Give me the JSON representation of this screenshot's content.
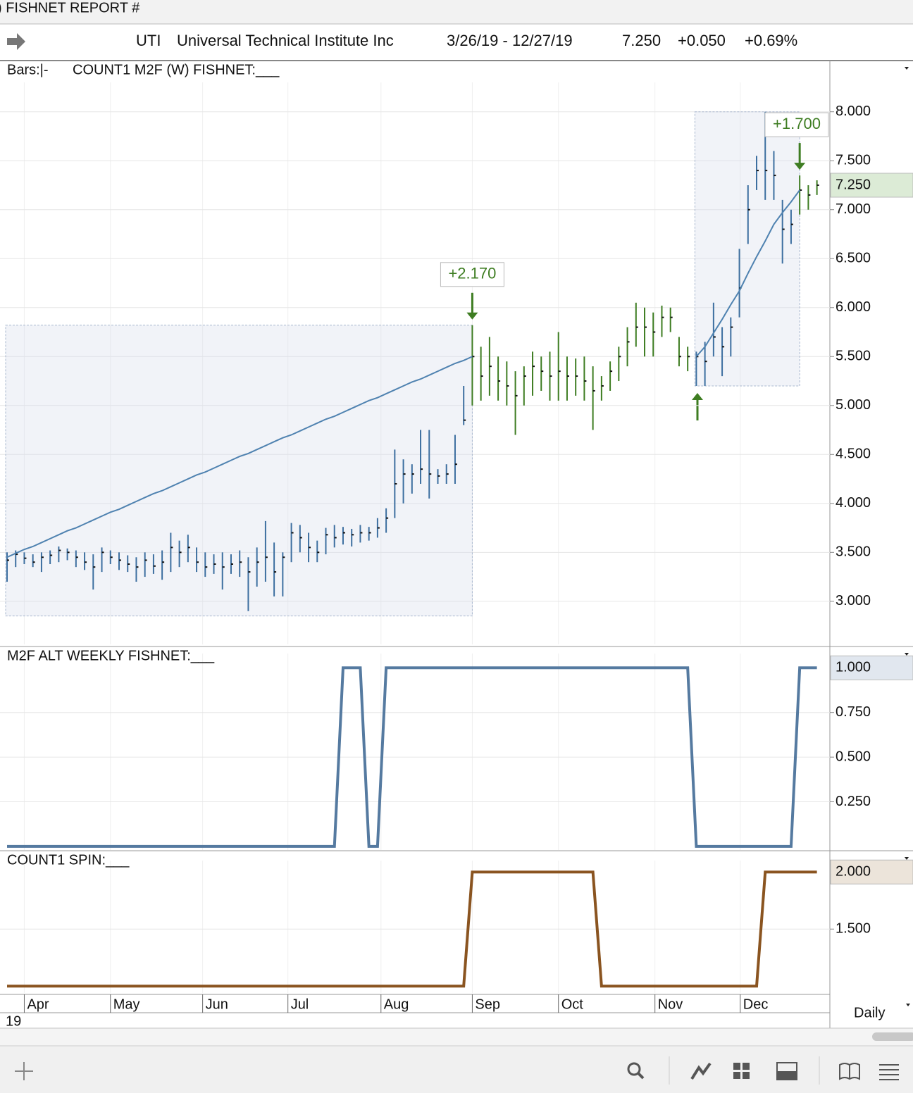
{
  "header": {
    "report": ") FISHNET  REPORT #",
    "symbol": "UTI",
    "name": "Universal Technical Institute Inc",
    "range": "3/26/19 - 12/27/19",
    "last": "7.250",
    "change": "+0.050",
    "change_pct": "+0.69%"
  },
  "footer": {
    "year": "19",
    "interval": "Daily"
  },
  "chart_data": [
    {
      "type": "hlc",
      "bars_label": "Bars:|-",
      "title": "COUNT1 M2F (W) FISHNET:___",
      "ylim": [
        2.56,
        8.3
      ],
      "yticks": [
        {
          "value": 3,
          "label": "3.000"
        },
        {
          "value": 3.5,
          "label": "3.500"
        },
        {
          "value": 4,
          "label": "4.000"
        },
        {
          "value": 4.5,
          "label": "4.500"
        },
        {
          "value": 5,
          "label": "5.000"
        },
        {
          "value": 5.5,
          "label": "5.500"
        },
        {
          "value": 6,
          "label": "6.000"
        },
        {
          "value": 6.5,
          "label": "6.500"
        },
        {
          "value": 7,
          "label": "7.000"
        },
        {
          "value": 7.5,
          "label": "7.500"
        },
        {
          "value": 8,
          "label": "8.000"
        }
      ],
      "last_label": {
        "value": 7.25,
        "label": "7.250",
        "color": "#dcebd6"
      },
      "high": [
        3.5,
        3.52,
        3.5,
        3.48,
        3.5,
        3.52,
        3.56,
        3.54,
        3.52,
        3.5,
        3.48,
        3.55,
        3.52,
        3.5,
        3.47,
        3.45,
        3.5,
        3.48,
        3.52,
        3.7,
        3.62,
        3.68,
        3.55,
        3.5,
        3.48,
        3.5,
        3.48,
        3.52,
        3.45,
        3.55,
        3.82,
        3.6,
        3.5,
        3.8,
        3.78,
        3.7,
        3.62,
        3.75,
        3.78,
        3.76,
        3.74,
        3.78,
        3.76,
        3.85,
        3.95,
        4.55,
        4.45,
        4.4,
        4.75,
        4.75,
        4.35,
        4.4,
        4.7,
        5.2,
        5.82,
        5.6,
        5.7,
        5.5,
        5.45,
        5.35,
        5.4,
        5.55,
        5.5,
        5.55,
        5.75,
        5.5,
        5.48,
        5.5,
        5.4,
        5.3,
        5.45,
        5.6,
        5.8,
        6.05,
        6.0,
        5.95,
        6.02,
        6.0,
        5.7,
        5.6,
        5.55,
        5.65,
        6.05,
        5.8,
        5.9,
        6.6,
        7.25,
        7.55,
        8.0,
        7.6,
        7.1,
        7.0,
        7.35,
        7.25,
        7.3
      ],
      "low": [
        3.2,
        3.35,
        3.38,
        3.35,
        3.3,
        3.38,
        3.4,
        3.42,
        3.35,
        3.32,
        3.12,
        3.3,
        3.38,
        3.32,
        3.3,
        3.2,
        3.25,
        3.28,
        3.22,
        3.3,
        3.35,
        3.4,
        3.3,
        3.25,
        3.28,
        3.12,
        3.28,
        3.25,
        2.9,
        3.15,
        3.2,
        3.05,
        3.05,
        3.4,
        3.5,
        3.4,
        3.4,
        3.48,
        3.55,
        3.58,
        3.56,
        3.6,
        3.62,
        3.65,
        3.7,
        3.85,
        4.0,
        4.1,
        4.2,
        4.05,
        4.2,
        4.2,
        4.2,
        4.8,
        5.0,
        5.05,
        5.1,
        5.05,
        5.0,
        4.7,
        5.0,
        5.1,
        5.15,
        5.05,
        5.05,
        5.05,
        5.1,
        5.05,
        4.75,
        5.05,
        5.15,
        5.25,
        5.4,
        5.6,
        5.5,
        5.5,
        5.7,
        5.75,
        5.4,
        5.35,
        5.2,
        5.2,
        5.5,
        5.3,
        5.5,
        5.9,
        6.65,
        7.2,
        7.1,
        7.1,
        6.45,
        6.65,
        6.95,
        7.0,
        7.15
      ],
      "close": [
        3.42,
        3.48,
        3.44,
        3.4,
        3.45,
        3.47,
        3.52,
        3.5,
        3.45,
        3.4,
        3.35,
        3.5,
        3.45,
        3.42,
        3.38,
        3.35,
        3.42,
        3.36,
        3.4,
        3.55,
        3.5,
        3.55,
        3.4,
        3.35,
        3.38,
        3.35,
        3.38,
        3.4,
        3.3,
        3.4,
        3.45,
        3.3,
        3.45,
        3.7,
        3.65,
        3.55,
        3.5,
        3.68,
        3.65,
        3.7,
        3.68,
        3.7,
        3.7,
        3.75,
        3.85,
        4.2,
        4.3,
        4.3,
        4.35,
        4.3,
        4.28,
        4.3,
        4.4,
        4.85,
        5.5,
        5.3,
        5.4,
        5.25,
        5.2,
        5.1,
        5.3,
        5.4,
        5.35,
        5.3,
        5.35,
        5.3,
        5.3,
        5.25,
        5.15,
        5.2,
        5.35,
        5.5,
        5.65,
        5.8,
        5.8,
        5.75,
        5.9,
        5.9,
        5.5,
        5.5,
        5.5,
        5.45,
        5.7,
        5.6,
        5.8,
        6.2,
        7.0,
        7.4,
        7.4,
        7.35,
        6.8,
        6.85,
        7.2,
        7.15,
        7.25
      ],
      "colors": [
        "#3d6fa0",
        "#3d6fa0",
        "#3d6fa0",
        "#3d6fa0",
        "#3d6fa0",
        "#3d6fa0",
        "#3d6fa0",
        "#3d6fa0",
        "#3d6fa0",
        "#3d6fa0",
        "#3d6fa0",
        "#3d6fa0",
        "#3d6fa0",
        "#3d6fa0",
        "#3d6fa0",
        "#3d6fa0",
        "#3d6fa0",
        "#3d6fa0",
        "#3d6fa0",
        "#3d6fa0",
        "#3d6fa0",
        "#3d6fa0",
        "#3d6fa0",
        "#3d6fa0",
        "#3d6fa0",
        "#3d6fa0",
        "#3d6fa0",
        "#3d6fa0",
        "#3d6fa0",
        "#3d6fa0",
        "#3d6fa0",
        "#3d6fa0",
        "#3d6fa0",
        "#3d6fa0",
        "#3d6fa0",
        "#3d6fa0",
        "#3d6fa0",
        "#3d6fa0",
        "#3d6fa0",
        "#3d6fa0",
        "#3d6fa0",
        "#3d6fa0",
        "#3d6fa0",
        "#3d6fa0",
        "#3d6fa0",
        "#3d6fa0",
        "#3d6fa0",
        "#3d6fa0",
        "#3d6fa0",
        "#3d6fa0",
        "#3d6fa0",
        "#3d6fa0",
        "#3d6fa0",
        "#3d6fa0",
        "#3e7d22",
        "#3e7d22",
        "#3e7d22",
        "#3e7d22",
        "#3e7d22",
        "#3e7d22",
        "#3e7d22",
        "#3e7d22",
        "#3e7d22",
        "#3e7d22",
        "#3e7d22",
        "#3e7d22",
        "#3e7d22",
        "#3e7d22",
        "#3e7d22",
        "#3e7d22",
        "#3e7d22",
        "#3e7d22",
        "#3e7d22",
        "#3e7d22",
        "#3e7d22",
        "#3e7d22",
        "#3e7d22",
        "#3e7d22",
        "#3e7d22",
        "#3e7d22",
        "#3d6fa0",
        "#3d6fa0",
        "#3d6fa0",
        "#3d6fa0",
        "#3d6fa0",
        "#3d6fa0",
        "#3d6fa0",
        "#3d6fa0",
        "#3d6fa0",
        "#3d6fa0",
        "#3d6fa0",
        "#3d6fa0",
        "#3e7d22",
        "#3e7d22",
        "#3e7d22"
      ],
      "ma": {
        "color": "#4f82b0",
        "values": [
          3.45,
          3.49,
          3.53,
          3.56,
          3.6,
          3.64,
          3.68,
          3.72,
          3.75,
          3.79,
          3.83,
          3.87,
          3.91,
          3.94,
          3.98,
          4.02,
          4.06,
          4.1,
          4.13,
          4.17,
          4.21,
          4.25,
          4.29,
          4.32,
          4.36,
          4.4,
          4.44,
          4.48,
          4.51,
          4.55,
          4.59,
          4.63,
          4.67,
          4.7,
          4.74,
          4.78,
          4.82,
          4.86,
          4.89,
          4.93,
          4.97,
          5.01,
          5.05,
          5.08,
          5.12,
          5.16,
          5.2,
          5.24,
          5.27,
          5.31,
          5.35,
          5.39,
          5.43,
          5.46,
          5.5,
          null,
          null,
          null,
          null,
          null,
          null,
          null,
          null,
          null,
          null,
          null,
          null,
          null,
          null,
          null,
          null,
          null,
          null,
          null,
          null,
          null,
          null,
          null,
          null,
          null,
          5.5,
          5.6,
          5.74,
          5.88,
          6.03,
          6.17,
          6.35,
          6.52,
          6.68,
          6.85,
          6.97,
          7.08,
          7.2,
          null,
          null
        ]
      },
      "ranges": [
        {
          "x": [
            0,
            54
          ],
          "y": [
            2.85,
            5.82
          ]
        },
        {
          "x": [
            80,
            92
          ],
          "y": [
            5.2,
            8.0
          ]
        }
      ],
      "annotations": [
        {
          "text": "+2.170",
          "x": 54
        },
        {
          "text": "+1.700",
          "x": 92
        }
      ]
    },
    {
      "type": "line",
      "title": "M2F ALT WEEKLY FISHNET:___",
      "color": "#557aa0",
      "ylim": [
        -0.02,
        1.08
      ],
      "yticks": [
        {
          "value": 0.25,
          "label": "0.250"
        },
        {
          "value": 0.5,
          "label": "0.500"
        },
        {
          "value": 0.75,
          "label": "0.750"
        }
      ],
      "last_label": {
        "value": 1,
        "label": "1.000",
        "color": "#e1e7ef"
      },
      "values": [
        0,
        0,
        0,
        0,
        0,
        0,
        0,
        0,
        0,
        0,
        0,
        0,
        0,
        0,
        0,
        0,
        0,
        0,
        0,
        0,
        0,
        0,
        0,
        0,
        0,
        0,
        0,
        0,
        0,
        0,
        0,
        0,
        0,
        0,
        0,
        0,
        0,
        0,
        0,
        1,
        1,
        1,
        0,
        0,
        1,
        1,
        1,
        1,
        1,
        1,
        1,
        1,
        1,
        1,
        1,
        1,
        1,
        1,
        1,
        1,
        1,
        1,
        1,
        1,
        1,
        1,
        1,
        1,
        1,
        1,
        1,
        1,
        1,
        1,
        1,
        1,
        1,
        1,
        1,
        1,
        0,
        0,
        0,
        0,
        0,
        0,
        0,
        0,
        0,
        0,
        0,
        0,
        1,
        1,
        1
      ]
    },
    {
      "type": "line",
      "title": "COUNT1 SPIN:___",
      "color": "#8a5420",
      "ylim": [
        0.94,
        2.1
      ],
      "yticks": [
        {
          "value": 1.5,
          "label": "1.500"
        }
      ],
      "last_label": {
        "value": 2,
        "label": "2.000",
        "color": "#ece4da"
      },
      "values": [
        1,
        1,
        1,
        1,
        1,
        1,
        1,
        1,
        1,
        1,
        1,
        1,
        1,
        1,
        1,
        1,
        1,
        1,
        1,
        1,
        1,
        1,
        1,
        1,
        1,
        1,
        1,
        1,
        1,
        1,
        1,
        1,
        1,
        1,
        1,
        1,
        1,
        1,
        1,
        1,
        1,
        1,
        1,
        1,
        1,
        1,
        1,
        1,
        1,
        1,
        1,
        1,
        1,
        1,
        2,
        2,
        2,
        2,
        2,
        2,
        2,
        2,
        2,
        2,
        2,
        2,
        2,
        2,
        2,
        1,
        1,
        1,
        1,
        1,
        1,
        1,
        1,
        1,
        1,
        1,
        1,
        1,
        1,
        1,
        1,
        1,
        1,
        1,
        2,
        2,
        2,
        2,
        2,
        2,
        2
      ],
      "xticks": [
        {
          "value": 2,
          "label": "Apr"
        },
        {
          "value": 12,
          "label": "May"
        },
        {
          "value": 22.7,
          "label": "Jun"
        },
        {
          "value": 32.6,
          "label": "Jul"
        },
        {
          "value": 43.4,
          "label": "Aug"
        },
        {
          "value": 54,
          "label": "Sep"
        },
        {
          "value": 64,
          "label": "Oct"
        },
        {
          "value": 75.2,
          "label": "Nov"
        },
        {
          "value": 85.1,
          "label": "Dec"
        }
      ]
    }
  ]
}
